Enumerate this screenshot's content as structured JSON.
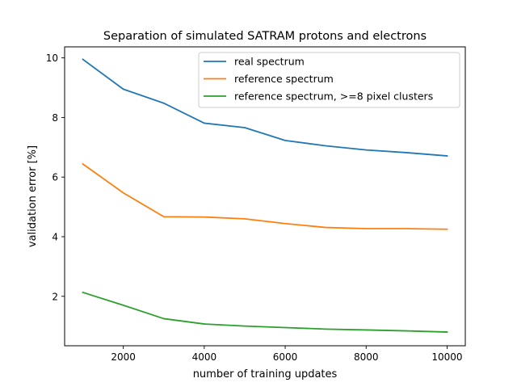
{
  "chart_data": {
    "type": "line",
    "title": "Separation of simulated SATRAM protons and electrons",
    "xlabel": "number of training updates",
    "ylabel": "validation error [%]",
    "xlim": [
      550,
      10450
    ],
    "ylim": [
      0.34,
      10.37
    ],
    "xticks": [
      2000,
      4000,
      6000,
      8000,
      10000
    ],
    "yticks": [
      2,
      4,
      6,
      8,
      10
    ],
    "legend_position": "upper right",
    "x": [
      1000,
      2000,
      3000,
      4000,
      5000,
      6000,
      7000,
      8000,
      9000,
      10000
    ],
    "series": [
      {
        "name": "real spectrum",
        "color": "#1f77b4",
        "values": [
          9.95,
          8.95,
          8.48,
          7.81,
          7.66,
          7.23,
          7.05,
          6.91,
          6.82,
          6.71
        ]
      },
      {
        "name": "reference spectrum",
        "color": "#ff7f0e",
        "values": [
          6.44,
          5.47,
          4.67,
          4.66,
          4.6,
          4.44,
          4.31,
          4.27,
          4.27,
          4.25
        ]
      },
      {
        "name": "reference spectrum, >=8 pixel clusters",
        "color": "#2ca02c",
        "values": [
          2.13,
          1.7,
          1.25,
          1.07,
          1.0,
          0.95,
          0.9,
          0.87,
          0.84,
          0.8
        ]
      }
    ]
  }
}
